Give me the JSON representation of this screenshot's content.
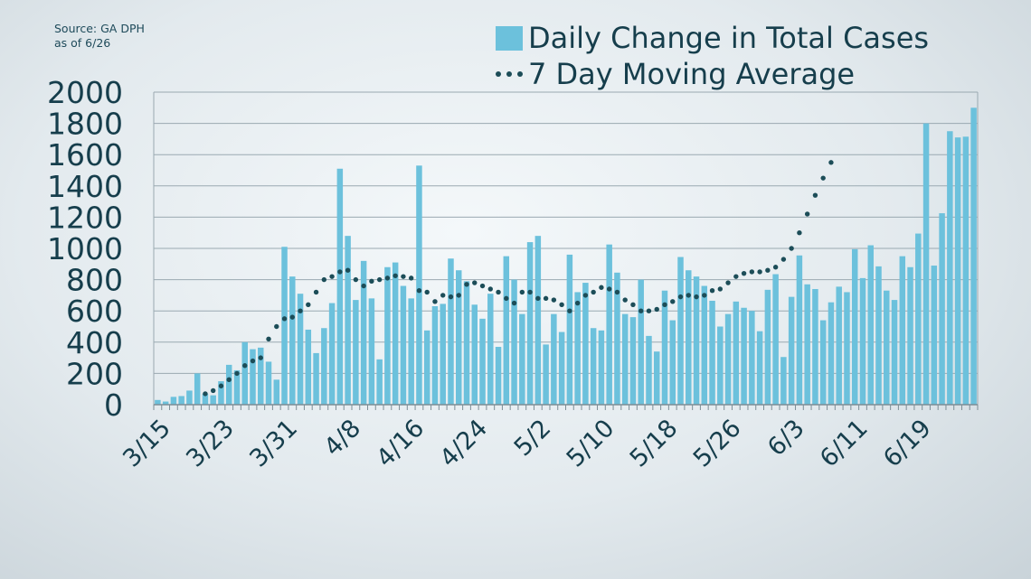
{
  "source": {
    "line1": "Source: GA DPH",
    "line2": "as of 6/26"
  },
  "legend": {
    "bars_label": "Daily Change in Total Cases",
    "line_label": "7 Day Moving Average"
  },
  "colors": {
    "bar": "#6cc1dc",
    "line": "#1c4d58",
    "axis_text": "#163e4c",
    "grid": "#9aa9b1"
  },
  "chart_data": {
    "type": "bar",
    "title": "",
    "xlabel": "",
    "ylabel": "",
    "ylim": [
      0,
      2000
    ],
    "yticks": [
      0,
      200,
      400,
      600,
      800,
      1000,
      1200,
      1400,
      1600,
      1800,
      2000
    ],
    "grid": true,
    "legend_position": "top-right",
    "xtick_labels": [
      {
        "index": 0,
        "label": "3/15"
      },
      {
        "index": 8,
        "label": "3/23"
      },
      {
        "index": 16,
        "label": "3/31"
      },
      {
        "index": 24,
        "label": "4/8"
      },
      {
        "index": 32,
        "label": "4/16"
      },
      {
        "index": 40,
        "label": "4/24"
      },
      {
        "index": 48,
        "label": "5/2"
      },
      {
        "index": 56,
        "label": "5/10"
      },
      {
        "index": 64,
        "label": "5/18"
      },
      {
        "index": 72,
        "label": "5/26"
      },
      {
        "index": 80,
        "label": "6/3"
      },
      {
        "index": 88,
        "label": "6/11"
      },
      {
        "index": 96,
        "label": "6/19"
      }
    ],
    "series": [
      {
        "name": "Daily Change in Total Cases",
        "kind": "bar",
        "values": [
          30,
          20,
          50,
          55,
          90,
          200,
          70,
          60,
          150,
          255,
          220,
          400,
          355,
          365,
          275,
          160,
          1010,
          820,
          710,
          480,
          330,
          490,
          650,
          1510,
          1080,
          670,
          920,
          680,
          290,
          880,
          910,
          760,
          680,
          1530,
          475,
          630,
          645,
          935,
          860,
          790,
          640,
          550,
          710,
          370,
          950,
          800,
          580,
          1040,
          1080,
          385,
          580,
          465,
          960,
          720,
          780,
          490,
          475,
          1025,
          845,
          580,
          560,
          800,
          440,
          340,
          730,
          540,
          945,
          860,
          820,
          760,
          665,
          500,
          580,
          660,
          620,
          600,
          470,
          735,
          835,
          305,
          690,
          955,
          770,
          740,
          540,
          655,
          755,
          720,
          995,
          810,
          1020,
          885,
          730,
          670,
          950,
          880,
          1095,
          1800,
          890,
          1225,
          1750,
          1710,
          1715,
          1900
        ]
      },
      {
        "name": "7 Day Moving Average",
        "kind": "line",
        "start_index": 6,
        "values": [
          70,
          90,
          120,
          160,
          200,
          250,
          280,
          300,
          420,
          500,
          550,
          560,
          600,
          640,
          720,
          800,
          820,
          850,
          860,
          800,
          760,
          790,
          800,
          810,
          825,
          820,
          810,
          730,
          720,
          660,
          700,
          690,
          700,
          770,
          780,
          760,
          740,
          720,
          680,
          650,
          720,
          720,
          680,
          680,
          670,
          640,
          600,
          650,
          700,
          720,
          750,
          740,
          720,
          670,
          640,
          600,
          600,
          610,
          640,
          660,
          690,
          700,
          690,
          700,
          730,
          740,
          780,
          820,
          840,
          850,
          850,
          860,
          880,
          930,
          1000,
          1100,
          1220,
          1340,
          1450,
          1550
        ]
      }
    ]
  }
}
